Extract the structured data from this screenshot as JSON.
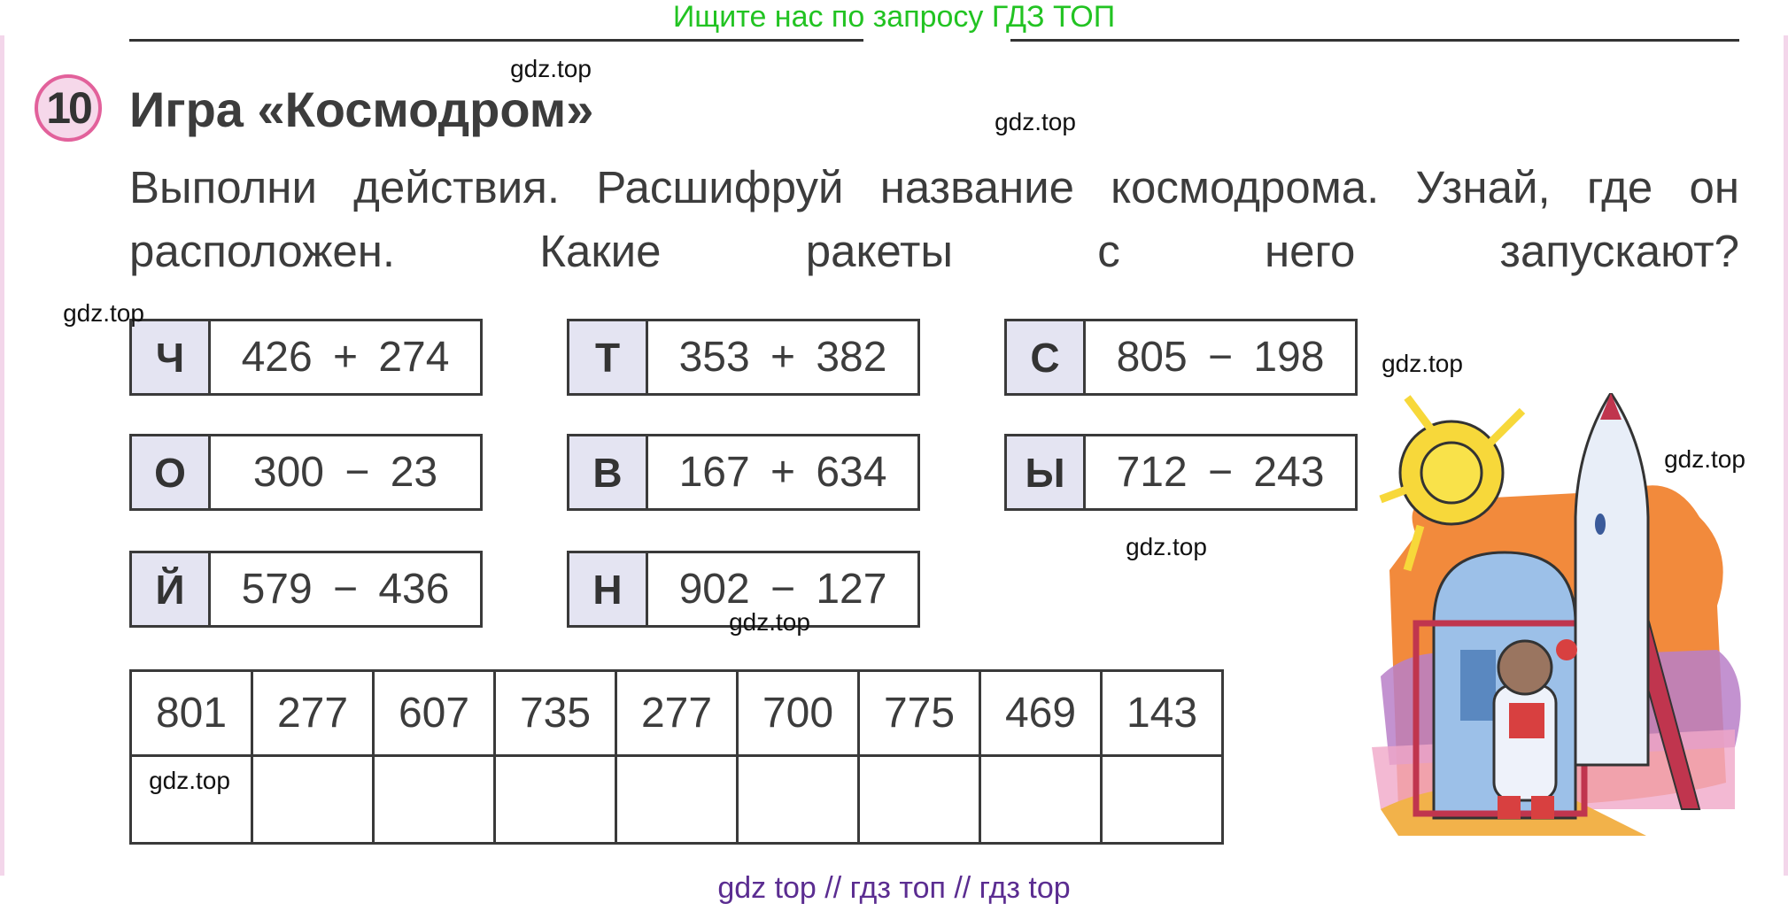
{
  "header_note": "Ищите нас по запросу ГДЗ ТОП",
  "exercise": {
    "number": "10",
    "title": "Игра «Космодром»",
    "instruction": "Выполни действия. Расшифруй название космодрома. Узнай, где он расположен. Какие ракеты с него запускают?"
  },
  "equations": [
    {
      "letter": "Ч",
      "expression": "426 + 274"
    },
    {
      "letter": "Т",
      "expression": "353 + 382"
    },
    {
      "letter": "С",
      "expression": "805 − 198"
    },
    {
      "letter": "О",
      "expression": "300 − 23"
    },
    {
      "letter": "В",
      "expression": "167 + 634"
    },
    {
      "letter": "Ы",
      "expression": "712 − 243"
    },
    {
      "letter": "Й",
      "expression": "579 − 436"
    },
    {
      "letter": "Н",
      "expression": "902 − 127"
    }
  ],
  "code_table": {
    "numbers": [
      "801",
      "277",
      "607",
      "735",
      "277",
      "700",
      "775",
      "469",
      "143"
    ],
    "answers": [
      "",
      "",
      "",
      "",
      "",
      "",
      "",
      "",
      ""
    ]
  },
  "watermark": "gdz.top",
  "footer_note": "gdz top  //  гдз топ  //  гдз top",
  "colors": {
    "accent_green": "#22c322",
    "badge_pink": "#e2619b",
    "letter_cell": "#e4e4f2",
    "footer_purple": "#5b2d91"
  }
}
